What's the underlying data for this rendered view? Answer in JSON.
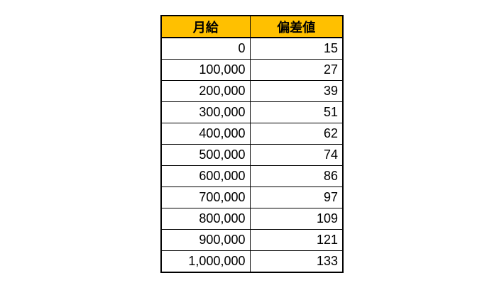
{
  "table": {
    "headers": [
      "月給",
      "偏差値"
    ],
    "rows": [
      [
        "0",
        "15"
      ],
      [
        "100,000",
        "27"
      ],
      [
        "200,000",
        "39"
      ],
      [
        "300,000",
        "51"
      ],
      [
        "400,000",
        "62"
      ],
      [
        "500,000",
        "74"
      ],
      [
        "600,000",
        "86"
      ],
      [
        "700,000",
        "97"
      ],
      [
        "800,000",
        "109"
      ],
      [
        "900,000",
        "121"
      ],
      [
        "1,000,000",
        "133"
      ]
    ]
  },
  "colors": {
    "header_bg": "#FFC000",
    "border": "#000000",
    "background": "#FFFFFF",
    "text": "#000000"
  },
  "chart_data": {
    "type": "table",
    "columns": [
      "月給",
      "偏差値"
    ],
    "rows": [
      [
        0,
        15
      ],
      [
        100000,
        27
      ],
      [
        200000,
        39
      ],
      [
        300000,
        51
      ],
      [
        400000,
        62
      ],
      [
        500000,
        74
      ],
      [
        600000,
        86
      ],
      [
        700000,
        97
      ],
      [
        800000,
        109
      ],
      [
        900000,
        121
      ],
      [
        1000000,
        133
      ]
    ]
  }
}
